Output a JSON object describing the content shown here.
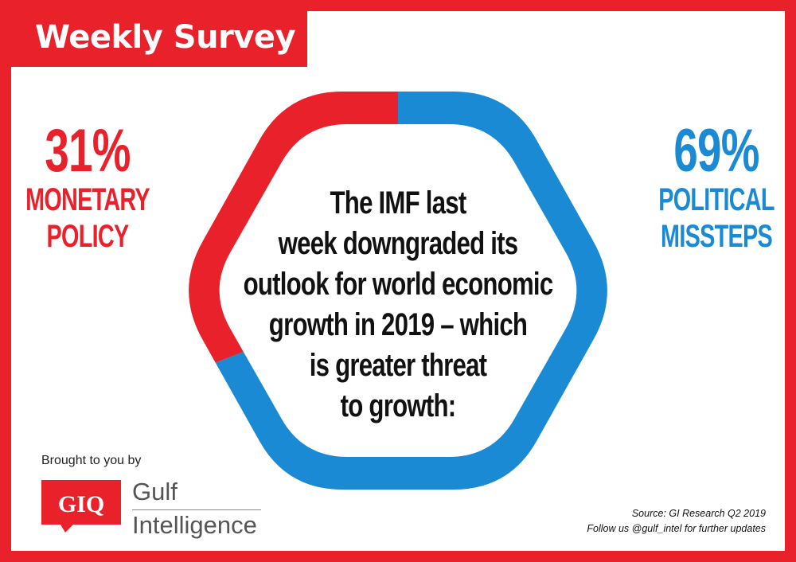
{
  "header": {
    "title": "Weekly Survey"
  },
  "chart_data": {
    "type": "pie",
    "question": "The IMF last week downgraded its outlook for world economic growth in 2019 – which is greater threat to growth:",
    "categories": [
      "MONETARY POLICY",
      "POLITICAL MISSTEPS"
    ],
    "values": [
      31,
      69
    ],
    "labels": [
      "31%",
      "69%"
    ],
    "colors": [
      "#e8212b",
      "#1a8ad4"
    ]
  },
  "left_label": {
    "value": "31%",
    "line1": "MONETARY",
    "line2": "POLICY"
  },
  "right_label": {
    "value": "69%",
    "line1": "POLITICAL",
    "line2": "MISSTEPS"
  },
  "question_lines": [
    "The IMF last",
    "week downgraded its",
    "outlook for world economic",
    "growth in 2019 – which",
    "is greater threat",
    "to growth:"
  ],
  "footer": {
    "brought": "Brought to you by",
    "logo_mark": "GIQ",
    "logo_line1": "Gulf",
    "logo_line2": "Intelligence",
    "source": "Source: GI Research Q2 2019",
    "follow": "Follow us @gulf_intel for further updates"
  }
}
